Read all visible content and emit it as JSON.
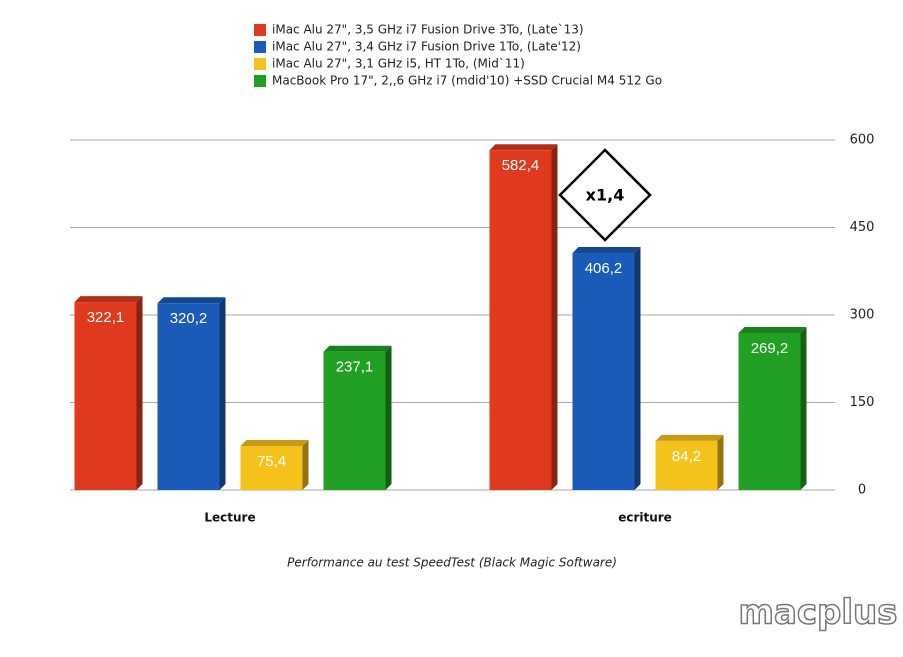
{
  "chart_data": {
    "type": "bar",
    "caption": "Performance au test SpeedTest (Black Magic Software)",
    "categories": [
      "Lecture",
      "ecriture"
    ],
    "series": [
      {
        "name": "iMac Alu 27\", 3,5 GHz i7 Fusion Drive 3To, (Late`13)",
        "color": "#e03a1e",
        "values": [
          322.1,
          582.4
        ],
        "value_labels": [
          "322,1",
          "582,4"
        ]
      },
      {
        "name": "iMac Alu 27\", 3,4 GHz i7 Fusion Drive 1To, (Late'12)",
        "color": "#1a5ab8",
        "values": [
          320.2,
          406.2
        ],
        "value_labels": [
          "320,2",
          "406,2"
        ]
      },
      {
        "name": "iMac Alu 27\", 3,1 GHz i5, HT 1To, (Mid`11)",
        "color": "#f5c21b",
        "values": [
          75.4,
          84.2
        ],
        "value_labels": [
          "75,4",
          "84,2"
        ]
      },
      {
        "name": "MacBook Pro 17\", 2,,6 GHz i7 (mdid'10) +SSD Crucial M4 512 Go",
        "color": "#22a024",
        "values": [
          237.1,
          269.2
        ],
        "value_labels": [
          "237,1",
          "269,2"
        ]
      }
    ],
    "ylim": [
      0,
      600
    ],
    "yticks": [
      0,
      150,
      300,
      450,
      600
    ],
    "grid": true,
    "annotation": "x1,4",
    "watermark": "macplus"
  }
}
